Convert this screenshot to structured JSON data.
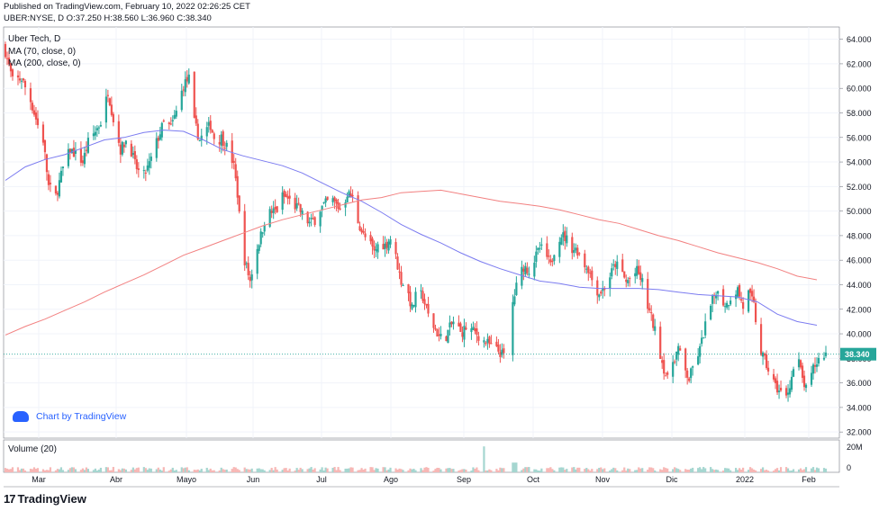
{
  "header": {
    "published": "Published on TradingView.com, February 10, 2022 02:26:25 CET",
    "quote": "UBER:NYSE, D O:37.250 H:38.560 L:36.960 C:38.340"
  },
  "legend": {
    "title": "Uber Tech, D",
    "ma70": "MA (70, close, 0)",
    "ma200": "MA (200, close, 0)",
    "volume": "Volume (20)"
  },
  "watermark": "Chart by TradingView",
  "brand": "TradingView",
  "last_price_label": "38.340",
  "colors": {
    "up": "#26a69a",
    "down": "#ef5350",
    "ma70": "#7b7bf0",
    "ma200": "#f28080",
    "grid": "#f0f3fa",
    "border": "#787b86"
  },
  "chart_data": {
    "type": "candlestick",
    "y_ticks": [
      "32.000",
      "34.000",
      "36.000",
      "38.000",
      "40.000",
      "42.000",
      "44.000",
      "46.000",
      "48.000",
      "50.000",
      "52.000",
      "54.000",
      "56.000",
      "58.000",
      "60.000",
      "62.000",
      "64.000"
    ],
    "ylim": [
      31.5,
      65.0
    ],
    "volume_ticks": [
      "20M",
      "0"
    ],
    "month_labels": [
      "Mar",
      "Abr",
      "Mayo",
      "Jun",
      "Jul",
      "Ago",
      "Sep",
      "Oct",
      "Nov",
      "Dic",
      "2022",
      "Feb"
    ],
    "last_close": 38.34,
    "close_path": [
      [
        0,
        63.0
      ],
      [
        4,
        60.6
      ],
      [
        9,
        60.8
      ],
      [
        14,
        59.0
      ],
      [
        18,
        57.0
      ],
      [
        21,
        55.8
      ],
      [
        24,
        52.0
      ],
      [
        28,
        51.2
      ],
      [
        32,
        53.5
      ],
      [
        36,
        55.0
      ],
      [
        40,
        54.5
      ],
      [
        43,
        54.0
      ],
      [
        46,
        55.6
      ],
      [
        50,
        56.5
      ],
      [
        54,
        57.5
      ],
      [
        57,
        59.8
      ],
      [
        60,
        57.5
      ],
      [
        64,
        55.0
      ],
      [
        68,
        56.0
      ],
      [
        72,
        53.8
      ],
      [
        76,
        52.6
      ],
      [
        80,
        53.8
      ],
      [
        84,
        55.6
      ],
      [
        88,
        57.2
      ],
      [
        92,
        56.8
      ],
      [
        96,
        58.5
      ],
      [
        99,
        60.3
      ],
      [
        102,
        60.8
      ],
      [
        105,
        57.2
      ],
      [
        108,
        55.8
      ],
      [
        111,
        56.5
      ],
      [
        114,
        57.0
      ],
      [
        117,
        55.5
      ],
      [
        120,
        56.0
      ],
      [
        122,
        55.5
      ],
      [
        125,
        54.7
      ],
      [
        127,
        53.6
      ],
      [
        129,
        51.4
      ],
      [
        131,
        48.0
      ],
      [
        133,
        46.0
      ],
      [
        136,
        44.3
      ],
      [
        139,
        46.6
      ],
      [
        142,
        48.0
      ],
      [
        145,
        49.8
      ],
      [
        148,
        49.9
      ],
      [
        151,
        50.1
      ],
      [
        154,
        51.2
      ],
      [
        157,
        51.0
      ],
      [
        160,
        50.5
      ],
      [
        163,
        50.2
      ],
      [
        166,
        49.5
      ],
      [
        169,
        49.0
      ],
      [
        172,
        49.3
      ],
      [
        175,
        50.2
      ],
      [
        178,
        50.6
      ],
      [
        181,
        51.0
      ],
      [
        184,
        50.5
      ],
      [
        187,
        50.0
      ],
      [
        190,
        51.5
      ],
      [
        193,
        51.0
      ],
      [
        196,
        49.2
      ],
      [
        199,
        48.0
      ],
      [
        202,
        47.5
      ],
      [
        205,
        46.6
      ],
      [
        208,
        47.5
      ],
      [
        211,
        47.2
      ],
      [
        214,
        47.8
      ],
      [
        217,
        46.2
      ],
      [
        220,
        44.3
      ],
      [
        223,
        43.8
      ],
      [
        226,
        42.0
      ],
      [
        229,
        43.5
      ],
      [
        232,
        43.0
      ],
      [
        235,
        41.5
      ],
      [
        238,
        40.6
      ],
      [
        241,
        39.8
      ],
      [
        244,
        39.5
      ],
      [
        247,
        40.5
      ],
      [
        250,
        41.2
      ],
      [
        253,
        40.0
      ],
      [
        256,
        40.5
      ],
      [
        259,
        40.3
      ],
      [
        262,
        40.0
      ],
      [
        265,
        39.5
      ],
      [
        268,
        39.2
      ],
      [
        271,
        38.8
      ],
      [
        274,
        38.6
      ],
      [
        277,
        38.2
      ],
      [
        280,
        39.4
      ],
      [
        282,
        42.5
      ],
      [
        285,
        44.5
      ],
      [
        288,
        45.5
      ],
      [
        291,
        45.2
      ],
      [
        294,
        46.0
      ],
      [
        297,
        47.0
      ],
      [
        300,
        46.6
      ],
      [
        303,
        45.5
      ],
      [
        306,
        47.5
      ],
      [
        309,
        48.1
      ],
      [
        312,
        47.7
      ],
      [
        315,
        47.0
      ],
      [
        318,
        46.8
      ],
      [
        321,
        45.8
      ],
      [
        324,
        45.3
      ],
      [
        327,
        44.0
      ],
      [
        330,
        43.3
      ],
      [
        333,
        43.8
      ],
      [
        336,
        44.7
      ],
      [
        339,
        45.7
      ],
      [
        342,
        45.2
      ],
      [
        345,
        44.2
      ],
      [
        348,
        44.6
      ],
      [
        351,
        45.1
      ],
      [
        354,
        44.2
      ],
      [
        356,
        42.7
      ],
      [
        359,
        41.3
      ],
      [
        362,
        39.7
      ],
      [
        365,
        37.7
      ],
      [
        368,
        36.2
      ],
      [
        371,
        37.8
      ],
      [
        374,
        38.8
      ],
      [
        377,
        37.2
      ],
      [
        380,
        36.3
      ],
      [
        383,
        37.7
      ],
      [
        386,
        38.7
      ],
      [
        389,
        40.7
      ],
      [
        392,
        42.2
      ],
      [
        395,
        43.6
      ],
      [
        398,
        42.7
      ],
      [
        401,
        42.4
      ],
      [
        404,
        43.3
      ],
      [
        407,
        43.6
      ],
      [
        410,
        42.2
      ],
      [
        413,
        43.3
      ],
      [
        416,
        42.3
      ],
      [
        419,
        38.8
      ],
      [
        422,
        37.8
      ],
      [
        425,
        36.7
      ],
      [
        428,
        35.7
      ],
      [
        431,
        35.2
      ],
      [
        434,
        34.8
      ],
      [
        437,
        36.5
      ],
      [
        440,
        38.3
      ],
      [
        443,
        36.3
      ],
      [
        446,
        35.0
      ],
      [
        449,
        37.2
      ],
      [
        452,
        37.9
      ],
      [
        455,
        38.34
      ]
    ],
    "candle_span_days": 456,
    "ma70": [
      [
        0,
        52.5
      ],
      [
        11,
        53.6
      ],
      [
        22,
        54.2
      ],
      [
        33,
        54.6
      ],
      [
        44,
        55.2
      ],
      [
        55,
        55.8
      ],
      [
        66,
        56.0
      ],
      [
        77,
        56.4
      ],
      [
        88,
        56.6
      ],
      [
        99,
        56.5
      ],
      [
        110,
        55.8
      ],
      [
        121,
        55.0
      ],
      [
        132,
        54.5
      ],
      [
        143,
        54.1
      ],
      [
        154,
        53.7
      ],
      [
        165,
        53.1
      ],
      [
        176,
        52.3
      ],
      [
        187,
        51.5
      ],
      [
        198,
        50.8
      ],
      [
        209,
        49.9
      ],
      [
        220,
        48.9
      ],
      [
        231,
        48.1
      ],
      [
        242,
        47.4
      ],
      [
        253,
        46.6
      ],
      [
        264,
        45.9
      ],
      [
        275,
        45.3
      ],
      [
        286,
        44.8
      ],
      [
        297,
        44.3
      ],
      [
        308,
        44.1
      ],
      [
        319,
        43.8
      ],
      [
        330,
        43.7
      ],
      [
        341,
        43.7
      ],
      [
        352,
        43.7
      ],
      [
        363,
        43.6
      ],
      [
        374,
        43.4
      ],
      [
        385,
        43.2
      ],
      [
        396,
        43.1
      ],
      [
        407,
        43.0
      ],
      [
        418,
        42.6
      ],
      [
        429,
        41.6
      ],
      [
        440,
        41.0
      ],
      [
        451,
        40.7
      ]
    ],
    "ma200": [
      [
        0,
        39.9
      ],
      [
        11,
        40.6
      ],
      [
        22,
        41.2
      ],
      [
        33,
        41.9
      ],
      [
        44,
        42.6
      ],
      [
        55,
        43.4
      ],
      [
        66,
        44.1
      ],
      [
        77,
        44.8
      ],
      [
        88,
        45.6
      ],
      [
        99,
        46.4
      ],
      [
        110,
        47.0
      ],
      [
        121,
        47.6
      ],
      [
        132,
        48.2
      ],
      [
        143,
        48.8
      ],
      [
        154,
        49.3
      ],
      [
        165,
        49.7
      ],
      [
        176,
        50.1
      ],
      [
        187,
        50.5
      ],
      [
        198,
        50.9
      ],
      [
        209,
        51.1
      ],
      [
        220,
        51.5
      ],
      [
        231,
        51.6
      ],
      [
        242,
        51.7
      ],
      [
        253,
        51.4
      ],
      [
        264,
        51.1
      ],
      [
        275,
        50.8
      ],
      [
        286,
        50.6
      ],
      [
        297,
        50.4
      ],
      [
        308,
        50.1
      ],
      [
        319,
        49.7
      ],
      [
        330,
        49.3
      ],
      [
        341,
        49.0
      ],
      [
        352,
        48.5
      ],
      [
        363,
        48.0
      ],
      [
        374,
        47.6
      ],
      [
        385,
        47.1
      ],
      [
        396,
        46.6
      ],
      [
        407,
        46.2
      ],
      [
        418,
        45.8
      ],
      [
        429,
        45.3
      ],
      [
        440,
        44.7
      ],
      [
        451,
        44.4
      ]
    ]
  }
}
